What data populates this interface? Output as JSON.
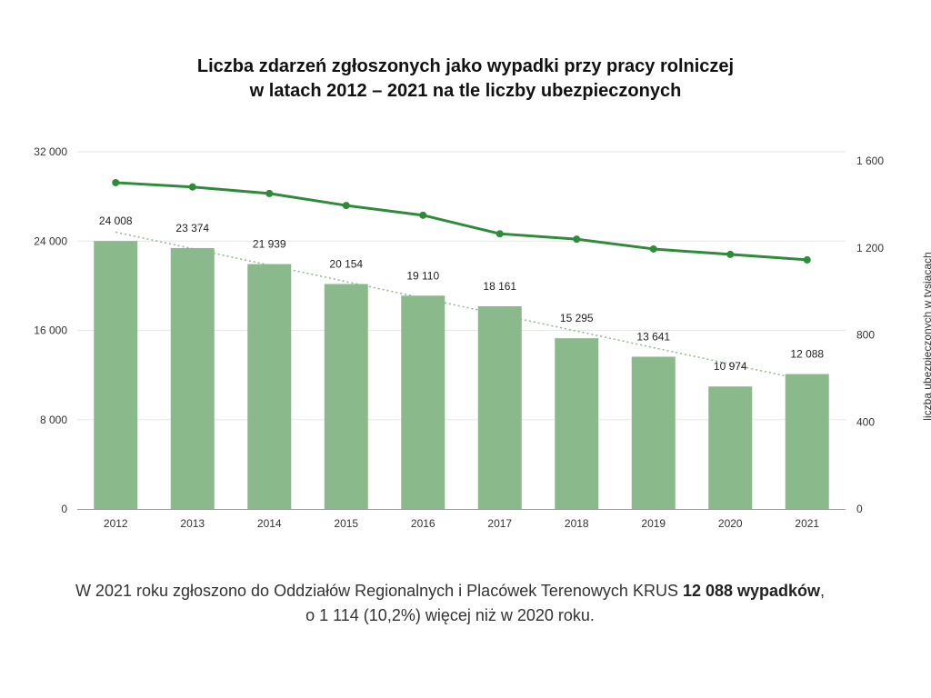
{
  "chart_data": {
    "type": "bar",
    "title_lines": [
      "Liczba zdarzeń zgłoszonych jako wypadki przy pracy rolniczej",
      "w latach 2012 – 2021 na tle liczby ubezpieczonych"
    ],
    "categories": [
      "2012",
      "2013",
      "2014",
      "2015",
      "2016",
      "2017",
      "2018",
      "2019",
      "2020",
      "2021"
    ],
    "series": [
      {
        "type": "bar",
        "axis": "left",
        "values": [
          24008,
          23374,
          21939,
          20154,
          19110,
          18161,
          15295,
          13641,
          10974,
          12088
        ],
        "labels": [
          "24 008",
          "23 374",
          "21 939",
          "20 154",
          "19 110",
          "18 161",
          "15 295",
          "13 641",
          "10 974",
          "12 088"
        ],
        "color": "#8aba8c"
      },
      {
        "type": "line",
        "axis": "right",
        "values": [
          1500,
          1480,
          1450,
          1395,
          1350,
          1265,
          1240,
          1195,
          1170,
          1145
        ],
        "color": "#2e8b3a"
      },
      {
        "type": "trendline",
        "axis": "left",
        "start": 24800,
        "end": 11500,
        "color": "#8aba8c"
      }
    ],
    "y_left": {
      "range": [
        0,
        32000
      ],
      "ticks": [
        0,
        8000,
        16000,
        24000,
        32000
      ],
      "tick_labels": [
        "0",
        "8 000",
        "16 000",
        "24 000",
        "32 000"
      ]
    },
    "y_right": {
      "range": [
        0,
        1600
      ],
      "ticks": [
        0,
        400,
        800,
        1200,
        1600
      ],
      "tick_labels": [
        "0",
        "400",
        "800",
        "1 200",
        "1 600"
      ],
      "label": "liczba ubezpieczonych w tysiącach"
    },
    "grid": true,
    "legend": "none"
  },
  "caption": {
    "line1_prefix": "W 2021 roku zgłoszono do Oddziałów Regionalnych i Placówek Terenowych KRUS ",
    "line1_bold": "12 088 wypadków",
    "line1_suffix": ",",
    "line2": "o 1 114 (10,2%) więcej niż w 2020 roku."
  },
  "colors": {
    "grid": "#e6e6e6",
    "axis": "#999999"
  }
}
